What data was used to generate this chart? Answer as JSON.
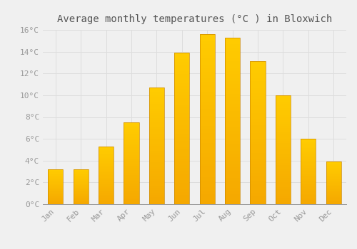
{
  "title": "Average monthly temperatures (°C ) in Bloxwich",
  "months": [
    "Jan",
    "Feb",
    "Mar",
    "Apr",
    "May",
    "Jun",
    "Jul",
    "Aug",
    "Sep",
    "Oct",
    "Nov",
    "Dec"
  ],
  "temperatures": [
    3.2,
    3.2,
    5.3,
    7.5,
    10.7,
    13.9,
    15.6,
    15.3,
    13.1,
    10.0,
    6.0,
    3.9
  ],
  "bar_color_bottom": "#F5A800",
  "bar_color_top": "#FFCC00",
  "bar_edge_color": "#CC8800",
  "ylim": [
    0,
    16
  ],
  "yticks": [
    0,
    2,
    4,
    6,
    8,
    10,
    12,
    14,
    16
  ],
  "background_color": "#F0F0F0",
  "grid_color": "#DDDDDD",
  "title_fontsize": 10,
  "tick_fontsize": 8,
  "tick_color": "#999999",
  "title_color": "#555555"
}
